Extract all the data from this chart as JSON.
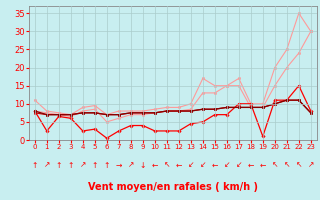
{
  "x": [
    0,
    1,
    2,
    3,
    4,
    5,
    6,
    7,
    8,
    9,
    10,
    11,
    12,
    13,
    14,
    15,
    16,
    17,
    18,
    19,
    20,
    21,
    22,
    23
  ],
  "series": [
    {
      "color": "#ff9999",
      "linewidth": 0.8,
      "marker": "o",
      "markersize": 1.8,
      "values": [
        11,
        8,
        7.5,
        7,
        9,
        9.5,
        7,
        8,
        8,
        8,
        8.5,
        9,
        9,
        10,
        17,
        15,
        15,
        17,
        10,
        10,
        20,
        25,
        35,
        30
      ]
    },
    {
      "color": "#ff9999",
      "linewidth": 0.8,
      "marker": "o",
      "markersize": 1.8,
      "values": [
        8,
        7.5,
        7,
        6.5,
        8,
        8.5,
        5,
        6,
        7,
        7,
        7.5,
        8,
        8,
        8.5,
        13,
        13,
        15,
        15,
        9,
        9,
        15,
        20,
        24,
        30
      ]
    },
    {
      "color": "#ff0000",
      "linewidth": 0.9,
      "marker": "D",
      "markersize": 1.8,
      "values": [
        8,
        2.5,
        6.5,
        6,
        2.5,
        3,
        0.5,
        2.5,
        4,
        4,
        2.5,
        2.5,
        2.5,
        4.5,
        5,
        7,
        7,
        10,
        10,
        1,
        11,
        11,
        15,
        8
      ]
    },
    {
      "color": "#cc0000",
      "linewidth": 0.9,
      "marker": "o",
      "markersize": 1.8,
      "values": [
        7.5,
        7,
        7,
        7,
        7.5,
        7.5,
        7,
        7,
        7.5,
        7.5,
        7.5,
        8,
        8,
        8,
        8.5,
        8.5,
        9,
        9,
        9,
        9,
        10,
        11,
        11,
        7.5
      ]
    },
    {
      "color": "#880000",
      "linewidth": 0.9,
      "marker": "o",
      "markersize": 1.8,
      "values": [
        8,
        7,
        7,
        7,
        7.5,
        7.5,
        7,
        7,
        7.5,
        7.5,
        7.5,
        8,
        8,
        8,
        8.5,
        8.5,
        9,
        9,
        9,
        9,
        10,
        11,
        11,
        7.5
      ]
    }
  ],
  "arrows": [
    "↑",
    "↗",
    "↑",
    "↑",
    "↗",
    "↑",
    "↑",
    "→",
    "↗",
    "↓",
    "←",
    "↖",
    "←",
    "↙",
    "↙",
    "←",
    "↙",
    "↙",
    "←",
    "←",
    "↖",
    "↖",
    "↖",
    "↗"
  ],
  "xlabel": "Vent moyen/en rafales ( km/h )",
  "ylim": [
    0,
    37
  ],
  "xlim": [
    -0.5,
    23.5
  ],
  "yticks": [
    0,
    5,
    10,
    15,
    20,
    25,
    30,
    35
  ],
  "xticks": [
    0,
    1,
    2,
    3,
    4,
    5,
    6,
    7,
    8,
    9,
    10,
    11,
    12,
    13,
    14,
    15,
    16,
    17,
    18,
    19,
    20,
    21,
    22,
    23
  ],
  "bg_color": "#c8eef0",
  "grid_color": "#aacccc",
  "tick_color": "#ff0000",
  "label_color": "#ff0000",
  "xlabel_fontsize": 7,
  "ytick_fontsize": 6,
  "xtick_fontsize": 5
}
